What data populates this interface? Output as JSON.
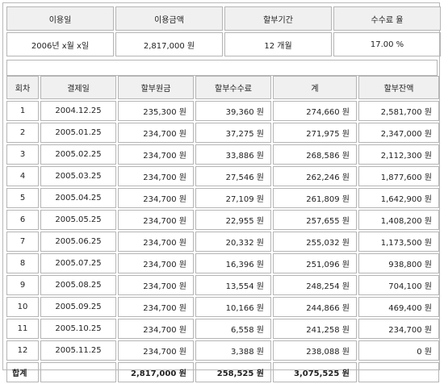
{
  "summary": {
    "headers": [
      "이용일",
      "이용금액",
      "할부기간",
      "수수료 율"
    ],
    "values": [
      "2006년 x월 x일",
      "2,817,000 원",
      "12 개월",
      "17.00 %"
    ]
  },
  "schedule": {
    "headers": [
      "회차",
      "결제일",
      "할부원금",
      "할부수수료",
      "계",
      "할부잔액"
    ],
    "rows": [
      [
        "1",
        "2004.12.25",
        "235,300 원",
        "39,360 원",
        "274,660 원",
        "2,581,700 원"
      ],
      [
        "2",
        "2005.01.25",
        "234,700 원",
        "37,275 원",
        "271,975 원",
        "2,347,000 원"
      ],
      [
        "3",
        "2005.02.25",
        "234,700 원",
        "33,886 원",
        "268,586 원",
        "2,112,300 원"
      ],
      [
        "4",
        "2005.03.25",
        "234,700 원",
        "27,546 원",
        "262,246 원",
        "1,877,600 원"
      ],
      [
        "5",
        "2005.04.25",
        "234,700 원",
        "27,109 원",
        "261,809 원",
        "1,642,900 원"
      ],
      [
        "6",
        "2005.05.25",
        "234,700 원",
        "22,955 원",
        "257,655 원",
        "1,408,200 원"
      ],
      [
        "7",
        "2005.06.25",
        "234,700 원",
        "20,332 원",
        "255,032 원",
        "1,173,500 원"
      ],
      [
        "8",
        "2005.07.25",
        "234,700 원",
        "16,396 원",
        "251,096 원",
        "938,800 원"
      ],
      [
        "9",
        "2005.08.25",
        "234,700 원",
        "13,554 원",
        "248,254 원",
        "704,100 원"
      ],
      [
        "10",
        "2005.09.25",
        "234,700 원",
        "10,166 원",
        "244,866 원",
        "469,400 원"
      ],
      [
        "11",
        "2005.10.25",
        "234,700 원",
        "6,558 원",
        "241,258 원",
        "234,700 원"
      ],
      [
        "12",
        "2005.11.25",
        "234,700 원",
        "3,388 원",
        "238,088 원",
        "0 원"
      ]
    ],
    "total": {
      "label": "합계",
      "payment_date": "",
      "principal": "2,817,000 원",
      "fee": "258,525 원",
      "sum": "3,075,525 원",
      "balance": ""
    }
  }
}
